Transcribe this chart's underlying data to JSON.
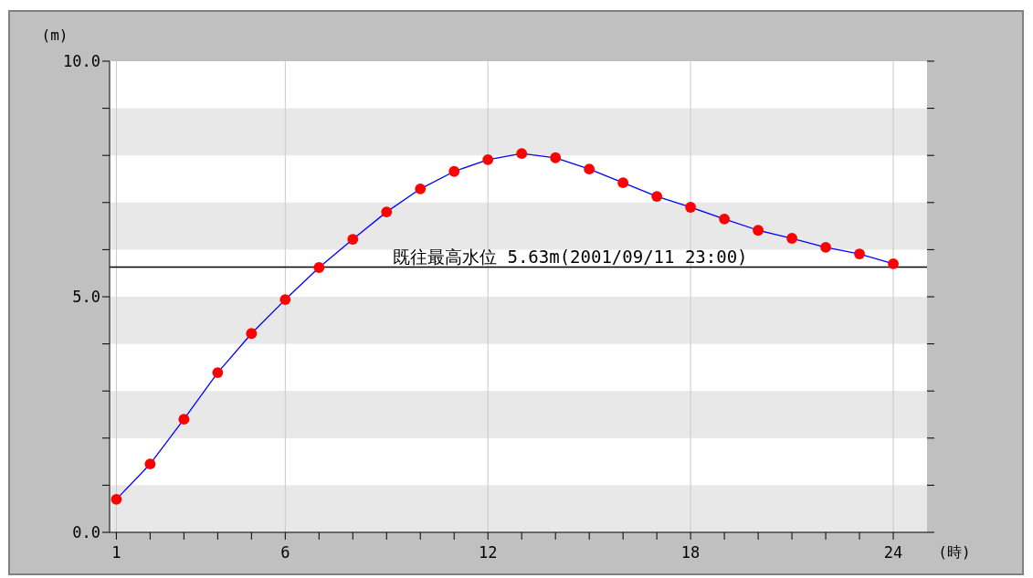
{
  "chart_data": {
    "type": "line",
    "xlabel": "(時)",
    "ylabel": "(m)",
    "x": [
      1,
      2,
      3,
      4,
      5,
      6,
      7,
      8,
      9,
      10,
      11,
      12,
      13,
      14,
      15,
      16,
      17,
      18,
      19,
      20,
      21,
      22,
      23,
      24
    ],
    "series": [
      {
        "color": "#0000ff",
        "values": [
          0.7,
          1.45,
          2.4,
          3.39,
          4.22,
          4.94,
          5.62,
          6.22,
          6.8,
          7.29,
          7.66,
          7.91,
          8.04,
          7.95,
          7.71,
          7.42,
          7.13,
          6.9,
          6.65,
          6.41,
          6.24,
          6.05,
          5.91,
          5.7
        ]
      }
    ],
    "marker": "circle",
    "grid": true,
    "xlim": [
      0.8,
      25
    ],
    "ylim": [
      0,
      10
    ],
    "xticks": [
      {
        "value": 1,
        "label": "1"
      },
      {
        "value": 2,
        "label": null
      },
      {
        "value": 3,
        "label": null
      },
      {
        "value": 4,
        "label": null
      },
      {
        "value": 5,
        "label": null
      },
      {
        "value": 6,
        "label": "6"
      },
      {
        "value": 7,
        "label": null
      },
      {
        "value": 8,
        "label": null
      },
      {
        "value": 9,
        "label": null
      },
      {
        "value": 10,
        "label": null
      },
      {
        "value": 11,
        "label": null
      },
      {
        "value": 12,
        "label": "12"
      },
      {
        "value": 13,
        "label": null
      },
      {
        "value": 14,
        "label": null
      },
      {
        "value": 15,
        "label": null
      },
      {
        "value": 16,
        "label": null
      },
      {
        "value": 17,
        "label": null
      },
      {
        "value": 18,
        "label": "18"
      },
      {
        "value": 19,
        "label": null
      },
      {
        "value": 20,
        "label": null
      },
      {
        "value": 21,
        "label": null
      },
      {
        "value": 22,
        "label": null
      },
      {
        "value": 23,
        "label": null
      },
      {
        "value": 24,
        "label": "24"
      }
    ],
    "yticks": [
      {
        "value": 0,
        "label": "0.0"
      },
      {
        "value": 1,
        "label": null
      },
      {
        "value": 2,
        "label": null
      },
      {
        "value": 3,
        "label": null
      },
      {
        "value": 4,
        "label": null
      },
      {
        "value": 5,
        "label": "5.0"
      },
      {
        "value": 6,
        "label": null
      },
      {
        "value": 7,
        "label": null
      },
      {
        "value": 8,
        "label": null
      },
      {
        "value": 9,
        "label": null
      },
      {
        "value": 10,
        "label": "10.0"
      }
    ],
    "ref_lines": [
      {
        "axis": "y",
        "value": 5.63,
        "label": "既往最高水位 5.63m(2001/09/11 23:00)",
        "color": "#000000"
      }
    ]
  }
}
